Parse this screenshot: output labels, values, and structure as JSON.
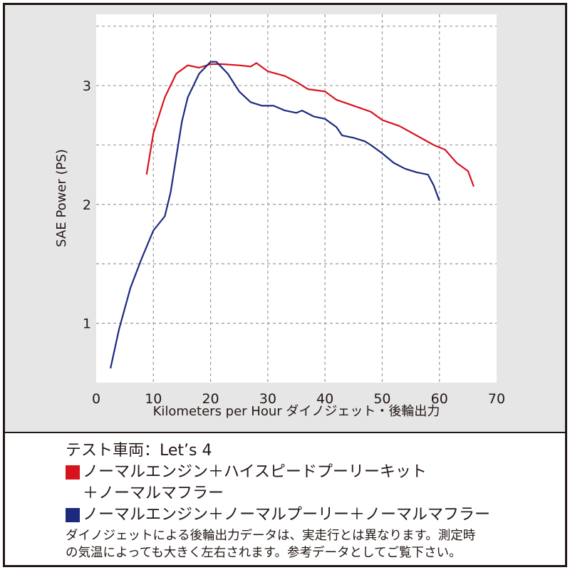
{
  "chart_data": {
    "type": "line",
    "xlabel": "Kilometers per Hour ダイノジェット・後輪出力",
    "ylabel": "SAE Power (PS)",
    "xlim": [
      0,
      70
    ],
    "xticks": [
      0,
      10,
      20,
      30,
      40,
      50,
      60,
      70
    ],
    "ylim": [
      0.5,
      3.6
    ],
    "yticks": [
      1,
      2,
      3
    ],
    "yminor": [
      1.5,
      2.5,
      3.5
    ],
    "grid": true,
    "legend_title": "テスト車両：Let’s 4",
    "series": [
      {
        "name": "ノーマルエンジン＋ハイスピードプーリーキット\n＋ノーマルマフラー",
        "color": "#d7141e",
        "x": [
          8.8,
          10,
          12,
          14,
          16,
          18,
          20,
          22,
          25,
          27,
          28,
          30,
          33,
          35,
          37,
          40,
          42,
          45,
          48,
          50,
          53,
          56,
          59,
          61,
          63,
          65,
          66
        ],
        "values": [
          2.25,
          2.6,
          2.9,
          3.1,
          3.17,
          3.15,
          3.18,
          3.18,
          3.17,
          3.16,
          3.19,
          3.12,
          3.08,
          3.03,
          2.97,
          2.95,
          2.88,
          2.83,
          2.78,
          2.71,
          2.66,
          2.58,
          2.5,
          2.46,
          2.35,
          2.28,
          2.15
        ]
      },
      {
        "name": "ノーマルエンジン＋ノーマルプーリー＋ノーマルマフラー",
        "color": "#1c2a7e",
        "x": [
          2.5,
          4,
          6,
          8,
          10,
          12,
          13,
          14,
          15,
          16,
          18,
          20,
          21,
          23,
          25,
          27,
          29,
          31,
          33,
          35,
          36,
          38,
          40,
          42,
          43,
          45,
          47,
          48,
          50,
          52,
          54,
          56,
          58,
          59,
          60
        ],
        "values": [
          0.62,
          0.95,
          1.3,
          1.55,
          1.78,
          1.9,
          2.1,
          2.4,
          2.7,
          2.9,
          3.1,
          3.2,
          3.2,
          3.1,
          2.95,
          2.86,
          2.83,
          2.83,
          2.79,
          2.77,
          2.79,
          2.74,
          2.72,
          2.65,
          2.58,
          2.56,
          2.53,
          2.5,
          2.43,
          2.35,
          2.3,
          2.27,
          2.25,
          2.16,
          2.03
        ]
      }
    ],
    "note": [
      "ダイノジェットによる後輪出力データは、実走行とは異なります。測定時",
      "の気温によっても大きく左右されます。参考データとしてご覧下さい。"
    ]
  }
}
